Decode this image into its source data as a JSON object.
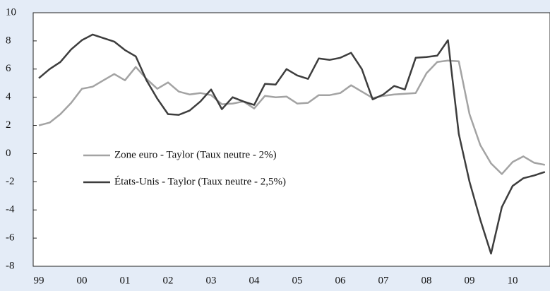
{
  "chart_data": {
    "type": "line",
    "categories": [
      "99",
      null,
      null,
      null,
      "00",
      null,
      null,
      null,
      "01",
      null,
      null,
      null,
      "02",
      null,
      null,
      null,
      "03",
      null,
      null,
      null,
      "04",
      null,
      null,
      null,
      "05",
      null,
      null,
      null,
      "06",
      null,
      null,
      null,
      "07",
      null,
      null,
      null,
      "08",
      null,
      null,
      null,
      "09",
      null,
      null,
      null,
      "10",
      null,
      null,
      null
    ],
    "series": [
      {
        "name": "Zone euro - Taylor (Taux neutre - 2%)",
        "color": "#a3a3a3",
        "values": [
          2.0,
          2.2,
          2.8,
          3.6,
          4.6,
          4.75,
          5.2,
          5.65,
          5.2,
          6.15,
          5.3,
          4.6,
          5.05,
          4.4,
          4.2,
          4.3,
          4.15,
          3.5,
          3.55,
          3.7,
          3.2,
          4.1,
          4.0,
          4.05,
          3.55,
          3.6,
          4.15,
          4.15,
          4.3,
          4.85,
          4.4,
          3.95,
          4.1,
          4.2,
          4.25,
          4.3,
          5.7,
          6.5,
          6.6,
          6.55,
          2.8,
          0.6,
          -0.7,
          -1.45,
          -0.6,
          -0.2,
          -0.65,
          -0.8
        ]
      },
      {
        "name": "États-Unis - Taylor (Taux neutre - 2,5%)",
        "color": "#3d3d3d",
        "values": [
          5.35,
          6.0,
          6.5,
          7.4,
          8.05,
          8.45,
          8.2,
          7.95,
          7.35,
          6.9,
          5.2,
          3.9,
          2.8,
          2.75,
          3.05,
          3.7,
          4.55,
          3.15,
          4.0,
          3.7,
          3.45,
          4.95,
          4.9,
          6.0,
          5.55,
          5.3,
          6.75,
          6.65,
          6.8,
          7.15,
          6.0,
          3.85,
          4.2,
          4.8,
          4.55,
          6.8,
          6.85,
          6.95,
          8.05,
          1.4,
          -2.0,
          -4.7,
          -7.1,
          -3.8,
          -2.3,
          -1.75,
          -1.55,
          -1.3
        ]
      }
    ],
    "ylim": [
      -8,
      10
    ],
    "yticks": [
      -8,
      -6,
      -4,
      -2,
      0,
      2,
      4,
      6,
      8,
      10
    ]
  }
}
